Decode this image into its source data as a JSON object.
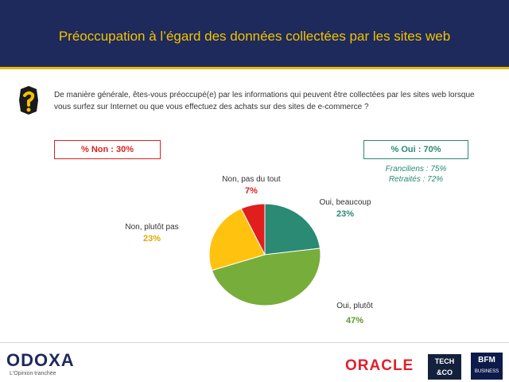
{
  "header": {
    "title": "Préoccupation à l’égard des données collectées par les sites web"
  },
  "question": {
    "line1": "De manière générale, êtes-vous préoccupé(e) par les informations qui peuvent être collectées par les sites web lorsque",
    "line2": "vous surfez sur Internet ou que vous effectuez des achats sur des sites de e-commerce ?"
  },
  "totals": {
    "non_label": "% Non : 30%",
    "oui_label": "% Oui : 70%",
    "oui_sub1": "Franciliens : 75%",
    "oui_sub2": "Retraités : 72%"
  },
  "colors": {
    "header_bg": "#1e2a5c",
    "header_title": "#f2c200",
    "non": "#e02020",
    "oui": "#2a8a74"
  },
  "chart_data": {
    "type": "pie",
    "slices": [
      {
        "name": "Oui, beaucoup",
        "value": 23,
        "label": "23%",
        "color": "#2a8a74",
        "label_color": "#2a8a74"
      },
      {
        "name": "Oui, plutôt",
        "value": 47,
        "label": "47%",
        "color": "#77ad3a",
        "label_color": "#5f9a2a"
      },
      {
        "name": "Non, plutôt pas",
        "value": 23,
        "label": "23%",
        "color": "#ffc20e",
        "label_color": "#e0a800"
      },
      {
        "name": "Non, pas du tout",
        "value": 7,
        "label": "7%",
        "color": "#e01e1e",
        "label_color": "#e01e1e"
      }
    ],
    "start_angle": "12 o'clock, clockwise"
  },
  "footer": {
    "odoxa": "ODOXA",
    "odoxa_tagline": "L'Opinion tranchée",
    "oracle": "ORACLE",
    "techco_line1": "TECH",
    "techco_line2": "&CO",
    "bfm_line1": "BFM",
    "bfm_line2": "BUSINESS"
  }
}
